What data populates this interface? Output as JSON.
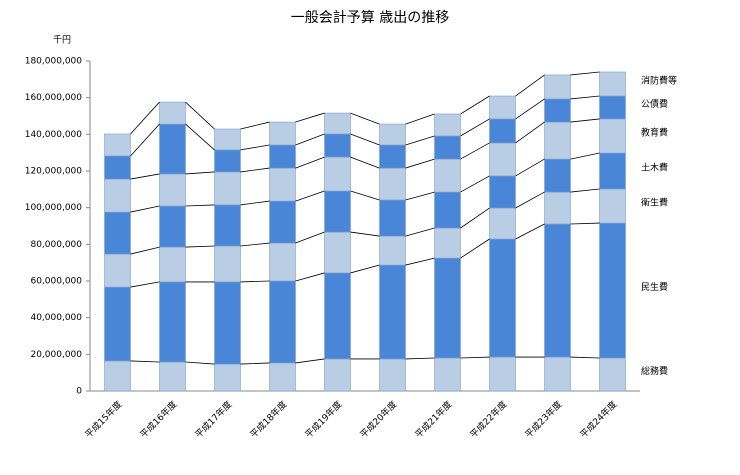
{
  "chart_data": {
    "type": "stacked-bar",
    "title": "一般会計予算 歳出の推移",
    "y_label": "千円",
    "categories": [
      "平成15年度",
      "平成16年度",
      "平成17年度",
      "平成18年度",
      "平成19年度",
      "平成20年度",
      "平成21年度",
      "平成22年度",
      "平成23年度",
      "平成24年度"
    ],
    "series": [
      {
        "name": "総務費",
        "color": "#b9cde5",
        "values": [
          16400000,
          15800000,
          14700000,
          15300000,
          17500000,
          17500000,
          18000000,
          18500000,
          18500000,
          18000000
        ]
      },
      {
        "name": "民生費",
        "color": "#4a86d8",
        "values": [
          40300000,
          43700000,
          44800000,
          44700000,
          46900000,
          51200000,
          54500000,
          64400000,
          72600000,
          73600000
        ]
      },
      {
        "name": "衛生費",
        "color": "#b9cde5",
        "values": [
          18000000,
          19000000,
          19600000,
          20700000,
          22300000,
          15800000,
          16400000,
          16900000,
          17400000,
          18600000
        ]
      },
      {
        "name": "土木費",
        "color": "#4a86d8",
        "values": [
          22900000,
          22400000,
          22400000,
          22900000,
          22400000,
          19700000,
          19600000,
          17500000,
          18000000,
          19600000
        ]
      },
      {
        "name": "教育費",
        "color": "#b9cde5",
        "values": [
          18000000,
          17500000,
          18000000,
          18000000,
          18500000,
          17400000,
          18000000,
          18000000,
          20200000,
          18600000
        ]
      },
      {
        "name": "公債費",
        "color": "#4a86d8",
        "values": [
          12600000,
          27200000,
          12000000,
          12600000,
          12600000,
          12600000,
          12600000,
          13100000,
          12600000,
          12500000
        ]
      },
      {
        "name": "消防費等",
        "color": "#b9cde5",
        "values": [
          12000000,
          12000000,
          11400000,
          12500000,
          11400000,
          11400000,
          12000000,
          12500000,
          13100000,
          13100000
        ]
      }
    ],
    "ylim": [
      0,
      180000000
    ],
    "yticks": [
      0,
      {
        "value": 20000000,
        "label": "20,000,000"
      },
      {
        "value": 40000000,
        "label": "40,000,000"
      },
      {
        "value": 60000000,
        "label": "60,000,000"
      },
      {
        "value": 80000000,
        "label": "80,000,000"
      },
      {
        "value": 100000000,
        "label": "100,000,000"
      },
      {
        "value": 120000000,
        "label": "120,000,000"
      },
      {
        "value": 140000000,
        "label": "140,000,000"
      },
      {
        "value": 160000000,
        "label": "160,000,000"
      },
      {
        "value": 180000000,
        "label": "180,000,000"
      }
    ]
  }
}
